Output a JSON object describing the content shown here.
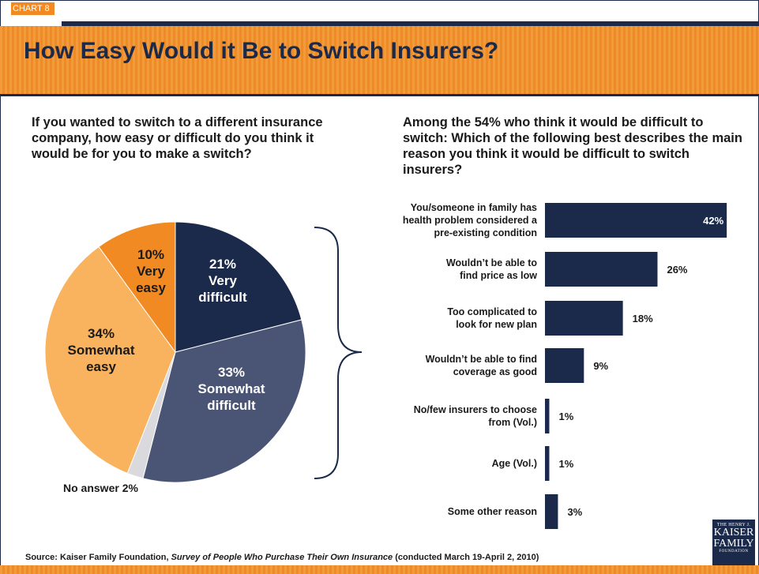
{
  "header": {
    "tag": "CHART 8",
    "title": "How Easy Would it Be to Switch Insurers?"
  },
  "left_question": "If you wanted to switch to a different insurance company, how easy or difficult do you think it would be for you to make a switch?",
  "right_question": "Among the 54% who think it would be difficult to switch: Which of the following best describes the main reason you think it would be difficult to switch insurers?",
  "source": {
    "prefix": "Source: Kaiser Family Foundation, ",
    "italic": "Survey of People Who Purchase Their Own Insurance",
    "suffix": " (conducted March 19-April 2, 2010)"
  },
  "logo": {
    "line1": "THE HENRY J.",
    "line2": "KAISER",
    "line3": "FAMILY",
    "line4": "FOUNDATION"
  },
  "colors": {
    "navy": "#1b2a4a",
    "slate": "#4a5474",
    "orange": "#f18a22",
    "light_orange": "#f9b25e",
    "gray": "#d9d9de"
  },
  "chart_data": [
    {
      "type": "pie",
      "slices": [
        {
          "label_pct": "21%",
          "label_lines": [
            "Very",
            "difficult"
          ],
          "value": 21,
          "color": "#1b2a4a",
          "text_color": "#ffffff"
        },
        {
          "label_pct": "33%",
          "label_lines": [
            "Somewhat",
            "difficult"
          ],
          "value": 33,
          "color": "#4a5474",
          "text_color": "#ffffff"
        },
        {
          "label_pct": "",
          "label_lines": [],
          "value": 2,
          "color": "#d9d9de",
          "text_color": "#1a1a1a",
          "external_label": "No answer 2%"
        },
        {
          "label_pct": "34%",
          "label_lines": [
            "Somewhat",
            "easy"
          ],
          "value": 34,
          "color": "#f9b25e",
          "text_color": "#1a1a1a"
        },
        {
          "label_pct": "10%",
          "label_lines": [
            "Very",
            "easy"
          ],
          "value": 10,
          "color": "#f18a22",
          "text_color": "#1a1a1a"
        }
      ]
    },
    {
      "type": "bar",
      "orientation": "horizontal",
      "categories": [
        [
          "You/someone in family has",
          "health problem considered a",
          "pre-existing condition"
        ],
        [
          "Wouldn’t be able to",
          "find price as low"
        ],
        [
          "Too complicated to",
          "look for new plan"
        ],
        [
          "Wouldn’t be able to find",
          "coverage as good"
        ],
        [
          "No/few insurers to choose",
          "from (Vol.)"
        ],
        [
          "Age (Vol.)"
        ],
        [
          "Some other reason"
        ]
      ],
      "values": [
        42,
        26,
        18,
        9,
        1,
        1,
        3
      ],
      "value_labels": [
        "42%",
        "26%",
        "18%",
        "9%",
        "1%",
        "1%",
        "3%"
      ],
      "color": "#1b2a4a"
    }
  ]
}
